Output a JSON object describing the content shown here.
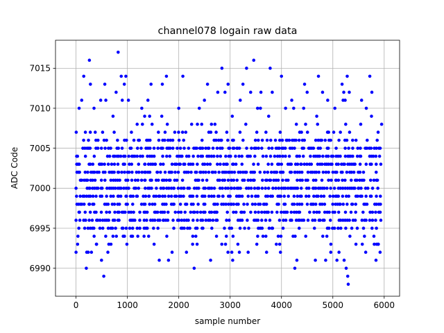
{
  "chart_data": {
    "type": "scatter",
    "title": "channel078 logain raw data",
    "xlabel": "sample number",
    "ylabel": "ADC Code",
    "xlim": [
      -400,
      6300
    ],
    "ylim": [
      6986.5,
      7018.5
    ],
    "x_ticks": [
      0,
      1000,
      2000,
      3000,
      4000,
      5000,
      6000
    ],
    "y_ticks": [
      6990,
      6995,
      7000,
      7005,
      7010,
      7015
    ],
    "grid": true,
    "marker_color": "#0000ff",
    "n_samples": 5950,
    "band": {
      "low": 6994,
      "high": 7006
    },
    "dense": [
      {
        "y": 6996,
        "p": 0.6
      },
      {
        "y": 6997,
        "p": 0.62
      },
      {
        "y": 6998,
        "p": 0.64
      },
      {
        "y": 6999,
        "p": 0.66
      },
      {
        "y": 7000,
        "p": 0.68
      },
      {
        "y": 7001,
        "p": 0.68
      },
      {
        "y": 7002,
        "p": 0.66
      },
      {
        "y": 7003,
        "p": 0.64
      },
      {
        "y": 7004,
        "p": 0.62
      },
      {
        "y": 7005,
        "p": 0.6
      },
      {
        "y": 6995,
        "p": 0.4
      },
      {
        "y": 7006,
        "p": 0.4
      },
      {
        "y": 6994,
        "p": 0.2
      },
      {
        "y": 7007,
        "p": 0.2
      },
      {
        "y": 7008,
        "p": 0.1
      },
      {
        "y": 6993,
        "p": 0.06
      },
      {
        "y": 7009,
        "p": 0.05
      },
      {
        "y": 7010,
        "p": 0.035
      },
      {
        "y": 6992,
        "p": 0.02
      },
      {
        "y": 7011,
        "p": 0.02
      },
      {
        "y": 7012,
        "p": 0.01
      },
      {
        "y": 6991,
        "p": 0.008
      },
      {
        "y": 7013,
        "p": 0.005
      }
    ],
    "points": [
      [
        0,
        6992
      ],
      [
        30,
        6993
      ],
      [
        60,
        7010
      ],
      [
        110,
        7011
      ],
      [
        150,
        7014
      ],
      [
        200,
        6990
      ],
      [
        260,
        7016
      ],
      [
        280,
        7013
      ],
      [
        300,
        6992
      ],
      [
        350,
        7010
      ],
      [
        400,
        6993
      ],
      [
        480,
        7011
      ],
      [
        540,
        6989
      ],
      [
        560,
        7013
      ],
      [
        580,
        7011
      ],
      [
        620,
        6992
      ],
      [
        680,
        6993
      ],
      [
        720,
        7009
      ],
      [
        780,
        7012
      ],
      [
        820,
        7017
      ],
      [
        880,
        7014
      ],
      [
        900,
        7011
      ],
      [
        940,
        7013
      ],
      [
        970,
        7014
      ],
      [
        990,
        6993
      ],
      [
        1020,
        7011
      ],
      [
        1100,
        6994
      ],
      [
        1280,
        7010
      ],
      [
        1400,
        7011
      ],
      [
        1460,
        7013
      ],
      [
        1520,
        6993
      ],
      [
        1620,
        6991
      ],
      [
        1680,
        7013
      ],
      [
        1760,
        7014
      ],
      [
        1800,
        6991
      ],
      [
        1870,
        6992
      ],
      [
        2000,
        7010
      ],
      [
        2080,
        7014
      ],
      [
        2150,
        6992
      ],
      [
        2270,
        6993
      ],
      [
        2300,
        6990
      ],
      [
        2400,
        7010
      ],
      [
        2500,
        7011
      ],
      [
        2560,
        7013
      ],
      [
        2620,
        6991
      ],
      [
        2760,
        7012
      ],
      [
        2840,
        7015
      ],
      [
        2900,
        7012
      ],
      [
        2960,
        7013
      ],
      [
        3050,
        6991
      ],
      [
        3180,
        6992
      ],
      [
        3250,
        7013
      ],
      [
        3320,
        7015
      ],
      [
        3400,
        7012
      ],
      [
        3460,
        7016
      ],
      [
        3520,
        6993
      ],
      [
        3600,
        7012
      ],
      [
        3640,
        6994
      ],
      [
        3710,
        6992
      ],
      [
        3780,
        7015
      ],
      [
        3820,
        7012
      ],
      [
        3900,
        6993
      ],
      [
        3980,
        6992
      ],
      [
        4000,
        7014
      ],
      [
        4080,
        7010
      ],
      [
        4200,
        7011
      ],
      [
        4260,
        6990
      ],
      [
        4300,
        6991
      ],
      [
        4450,
        7013
      ],
      [
        4500,
        7012
      ],
      [
        4660,
        6991
      ],
      [
        4720,
        7014
      ],
      [
        4800,
        7012
      ],
      [
        4860,
        6991
      ],
      [
        4900,
        7011
      ],
      [
        4960,
        6992
      ],
      [
        5040,
        7010
      ],
      [
        5080,
        6991
      ],
      [
        5120,
        6992
      ],
      [
        5180,
        7013
      ],
      [
        5220,
        6991
      ],
      [
        5240,
        7011
      ],
      [
        5260,
        6990
      ],
      [
        5280,
        7014
      ],
      [
        5290,
        6989
      ],
      [
        5300,
        6988
      ],
      [
        5320,
        7012
      ],
      [
        5450,
        6993
      ],
      [
        5560,
        7011
      ],
      [
        5640,
        6992
      ],
      [
        5720,
        7014
      ],
      [
        5760,
        7012
      ],
      [
        5800,
        6994
      ],
      [
        5840,
        6991
      ],
      [
        5880,
        6993
      ],
      [
        5920,
        6992
      ],
      [
        5950,
        7008
      ]
    ]
  }
}
